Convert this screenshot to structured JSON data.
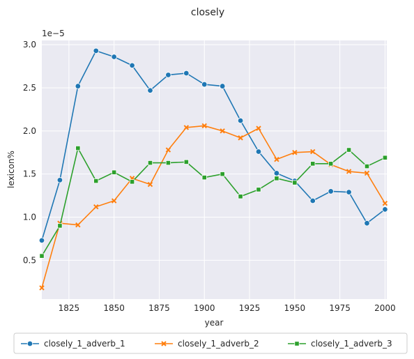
{
  "chart_data": {
    "type": "line",
    "title": "closely",
    "xlabel": "year",
    "ylabel": "lexicon%",
    "y_scale_label": "1e−5",
    "xlim": [
      1810,
      2001
    ],
    "ylim": [
      0.05,
      3.05
    ],
    "x_ticks": [
      1825,
      1850,
      1875,
      1900,
      1925,
      1950,
      1975,
      2000
    ],
    "y_ticks": [
      0.5,
      1.0,
      1.5,
      2.0,
      2.5,
      3.0
    ],
    "x_tick_labels": [
      "1825",
      "1850",
      "1875",
      "1900",
      "1925",
      "1950",
      "1975",
      "2000"
    ],
    "y_tick_labels": [
      "0.5",
      "1.0",
      "1.5",
      "2.0",
      "2.5",
      "3.0"
    ],
    "grid": true,
    "background": "#eaeaf2",
    "legend_position": "bottom",
    "x": [
      1810,
      1820,
      1830,
      1840,
      1850,
      1860,
      1870,
      1880,
      1890,
      1900,
      1910,
      1920,
      1930,
      1940,
      1950,
      1960,
      1970,
      1980,
      1990,
      2000
    ],
    "series": [
      {
        "name": "closely_1_adverb_1",
        "color": "#1f77b4",
        "marker": "circle",
        "values": [
          0.73,
          1.43,
          2.52,
          2.93,
          2.86,
          2.76,
          2.47,
          2.65,
          2.67,
          2.54,
          2.52,
          2.12,
          1.76,
          1.51,
          1.42,
          1.19,
          1.3,
          1.29,
          0.93,
          1.09
        ]
      },
      {
        "name": "closely_1_adverb_2",
        "color": "#ff7f0e",
        "marker": "x",
        "values": [
          0.18,
          0.93,
          0.91,
          1.12,
          1.19,
          1.45,
          1.38,
          1.78,
          2.04,
          2.06,
          2.0,
          1.92,
          2.03,
          1.67,
          1.75,
          1.76,
          1.61,
          1.53,
          1.51,
          1.16
        ]
      },
      {
        "name": "closely_1_adverb_3",
        "color": "#2ca02c",
        "marker": "square",
        "values": [
          0.55,
          0.9,
          1.8,
          1.42,
          1.52,
          1.41,
          1.63,
          1.63,
          1.64,
          1.46,
          1.5,
          1.24,
          1.32,
          1.45,
          1.4,
          1.62,
          1.62,
          1.78,
          1.59,
          1.69
        ]
      }
    ]
  }
}
